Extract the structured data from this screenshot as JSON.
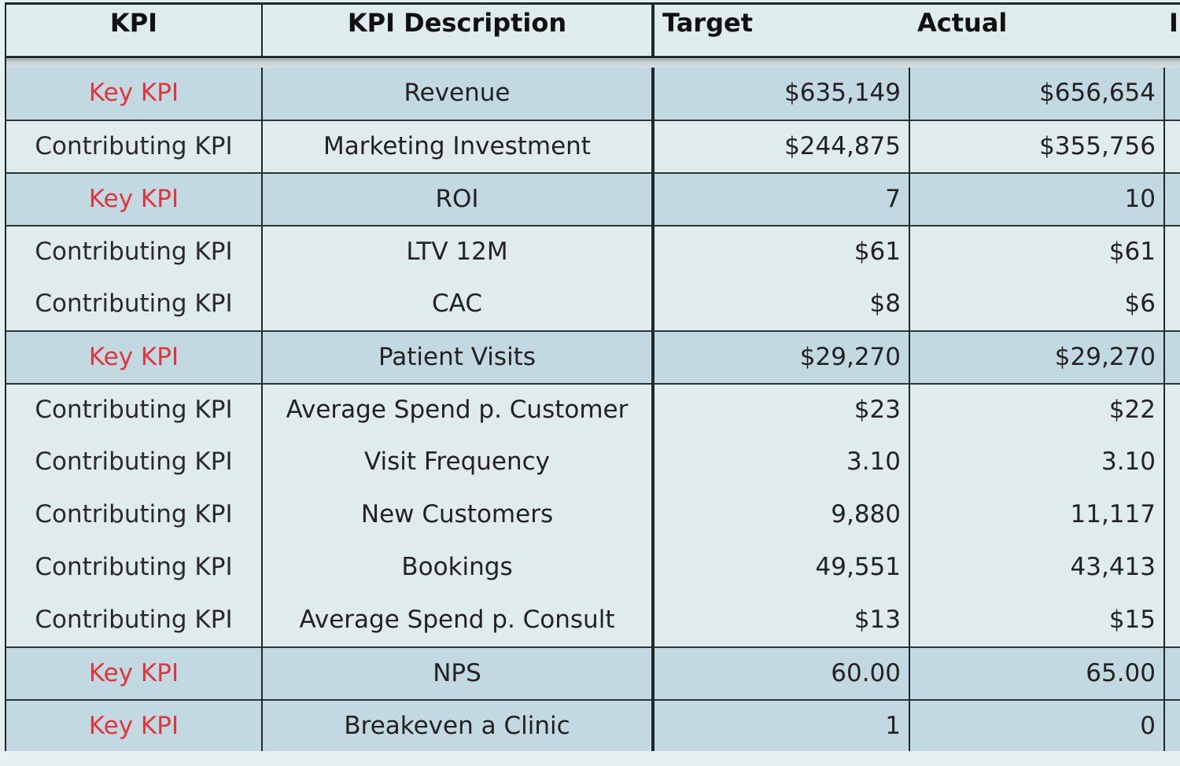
{
  "table": {
    "headers": {
      "kpi": "KPI",
      "description": "KPI Description",
      "target": "Target",
      "actual": "Actual",
      "extra": "I"
    },
    "rows": [
      {
        "type": "Key KPI",
        "description": "Revenue",
        "target": "$635,149",
        "actual": "$656,654"
      },
      {
        "type": "Contributing KPI",
        "description": "Marketing Investment",
        "target": "$244,875",
        "actual": "$355,756"
      },
      {
        "type": "Key KPI",
        "description": "ROI",
        "target": "7",
        "actual": "10"
      },
      {
        "type": "Contributing KPI",
        "description": "LTV 12M",
        "target": "$61",
        "actual": "$61"
      },
      {
        "type": "Contributing KPI",
        "description": "CAC",
        "target": "$8",
        "actual": "$6"
      },
      {
        "type": "Key KPI",
        "description": "Patient Visits",
        "target": "$29,270",
        "actual": "$29,270"
      },
      {
        "type": "Contributing KPI",
        "description": "Average Spend p. Customer",
        "target": "$23",
        "actual": "$22"
      },
      {
        "type": "Contributing KPI",
        "description": "Visit Frequency",
        "target": "3.10",
        "actual": "3.10"
      },
      {
        "type": "Contributing KPI",
        "description": "New Customers",
        "target": "9,880",
        "actual": "11,117"
      },
      {
        "type": "Contributing KPI",
        "description": "Bookings",
        "target": "49,551",
        "actual": "43,413"
      },
      {
        "type": "Contributing KPI",
        "description": "Average Spend p. Consult",
        "target": "$13",
        "actual": "$15"
      },
      {
        "type": "Key KPI",
        "description": "NPS",
        "target": "60.00",
        "actual": "65.00"
      },
      {
        "type": "Key KPI",
        "description": "Breakeven a Clinic",
        "target": "1",
        "actual": "0"
      }
    ]
  },
  "colors": {
    "key_kpi_text": "#e0353c",
    "key_row_bg": "#c3d9e1",
    "contrib_row_bg": "#e0ecec",
    "header_bg": "#dfecec"
  }
}
